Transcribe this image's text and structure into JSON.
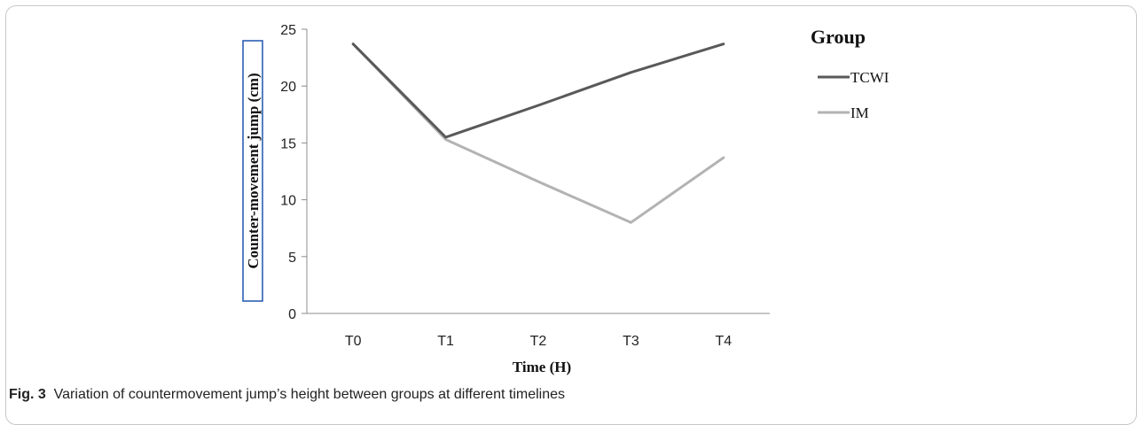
{
  "chart_data": {
    "type": "line",
    "categories": [
      "T0",
      "T1",
      "T2",
      "T3",
      "T4"
    ],
    "series": [
      {
        "name": "TCWI",
        "values": [
          23.7,
          15.5,
          18.3,
          21.2,
          23.7
        ],
        "color": "#595959"
      },
      {
        "name": "IM",
        "values": [
          23.7,
          15.3,
          11.6,
          8.0,
          13.7
        ],
        "color": "#b3b3b3"
      }
    ],
    "xlabel": "Time (H)",
    "ylabel": "Counter-movement jump (cm)",
    "ylim": [
      0,
      25
    ],
    "yticks": [
      0,
      5,
      10,
      15,
      20,
      25
    ],
    "legend_title": "Group",
    "legend_position": "right",
    "grid": false
  },
  "caption": {
    "label": "Fig. 3",
    "text": "Variation of countermovement jump’s height between groups at different timelines"
  }
}
